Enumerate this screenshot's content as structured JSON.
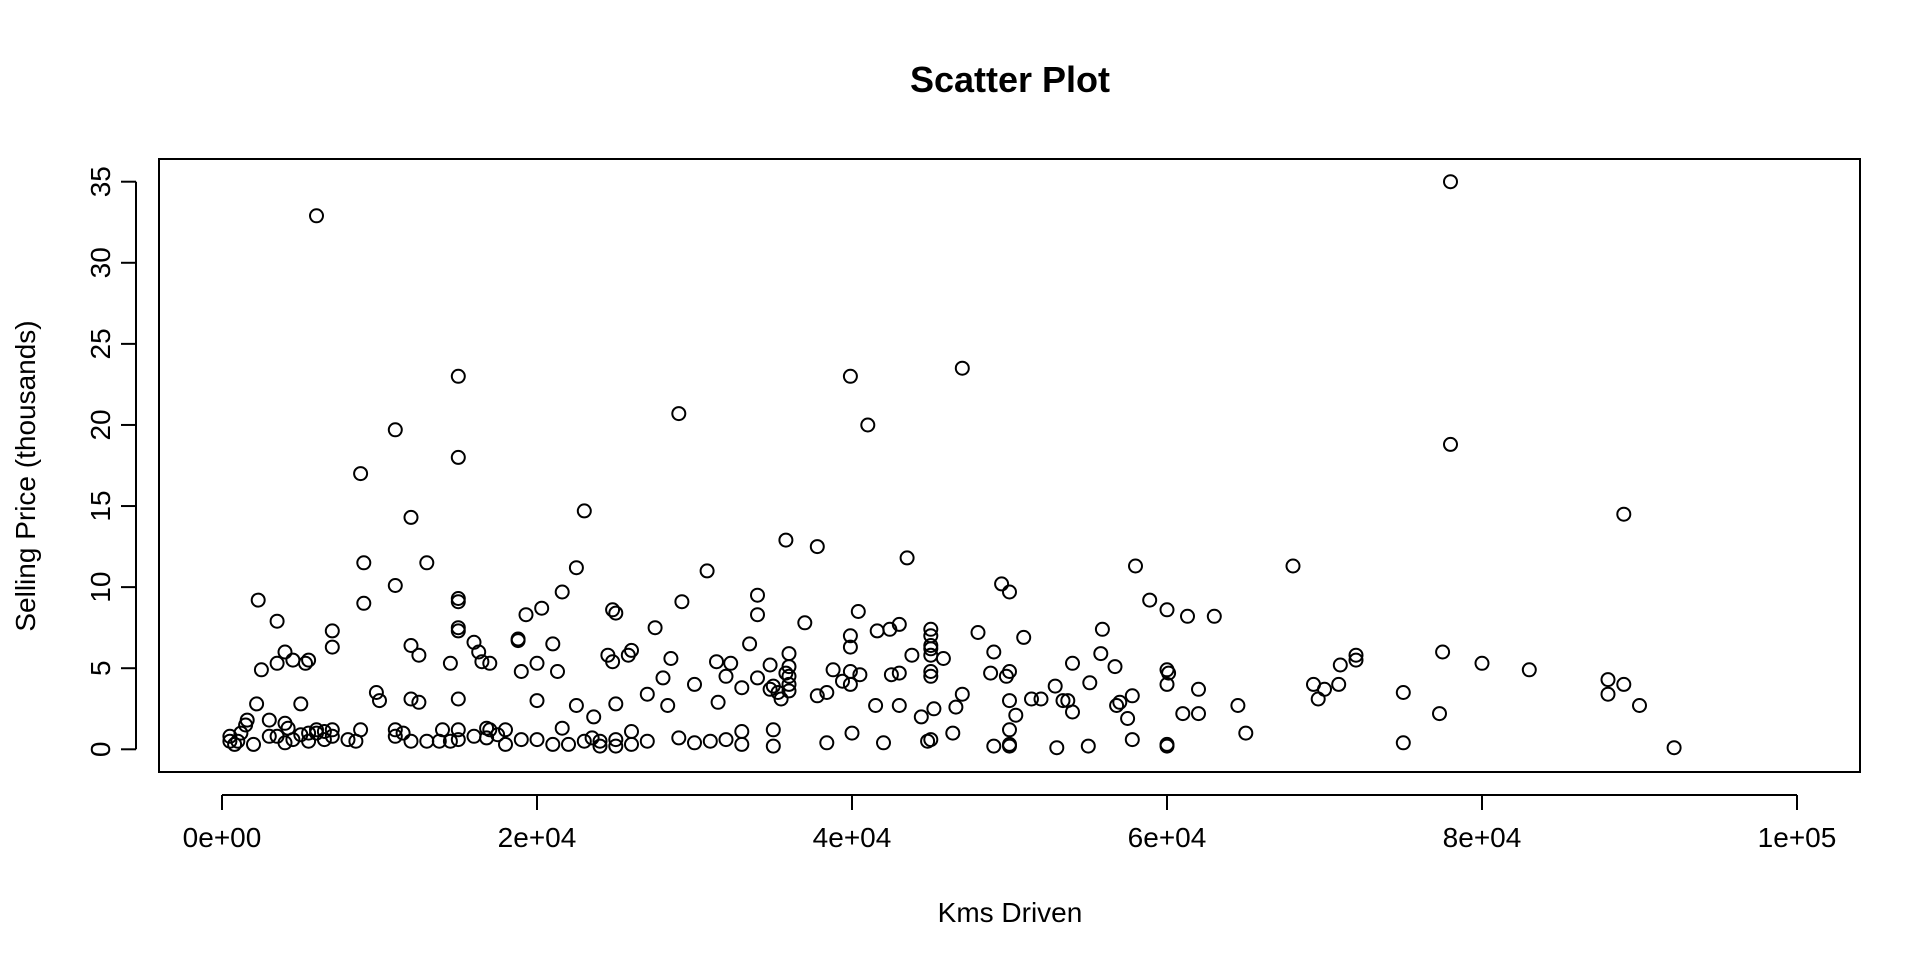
{
  "chart_data": {
    "type": "scatter",
    "title": "Scatter Plot",
    "xlabel": "Kms Driven",
    "ylabel": "Selling Price (thousands)",
    "xlim": [
      -4000,
      104000
    ],
    "ylim": [
      -1.4,
      36.4
    ],
    "xticks": [
      {
        "value": 0,
        "label": "0e+00"
      },
      {
        "value": 20000,
        "label": "2e+04"
      },
      {
        "value": 40000,
        "label": "4e+04"
      },
      {
        "value": 60000,
        "label": "6e+04"
      },
      {
        "value": 80000,
        "label": "8e+04"
      },
      {
        "value": 100000,
        "label": "1e+05"
      }
    ],
    "yticks": [
      {
        "value": 0,
        "label": "0"
      },
      {
        "value": 5,
        "label": "5"
      },
      {
        "value": 10,
        "label": "10"
      },
      {
        "value": 15,
        "label": "15"
      },
      {
        "value": 20,
        "label": "20"
      },
      {
        "value": 25,
        "label": "25"
      },
      {
        "value": 30,
        "label": "30"
      },
      {
        "value": 35,
        "label": "35"
      }
    ],
    "grid": false,
    "legend": "none",
    "point_style": "open-circle",
    "color": "#000000",
    "points": [
      [
        500,
        0.5
      ],
      [
        500,
        0.8
      ],
      [
        800,
        0.3
      ],
      [
        1000,
        0.5
      ],
      [
        1200,
        1.0
      ],
      [
        1500,
        1.5
      ],
      [
        1600,
        1.8
      ],
      [
        2000,
        0.3
      ],
      [
        2200,
        2.8
      ],
      [
        2300,
        9.2
      ],
      [
        2500,
        4.9
      ],
      [
        3000,
        0.8
      ],
      [
        3000,
        1.8
      ],
      [
        3500,
        5.3
      ],
      [
        3500,
        7.9
      ],
      [
        3500,
        0.8
      ],
      [
        4000,
        0.4
      ],
      [
        4000,
        1.6
      ],
      [
        4000,
        6.0
      ],
      [
        4200,
        1.3
      ],
      [
        4500,
        5.5
      ],
      [
        4500,
        0.6
      ],
      [
        5000,
        0.9
      ],
      [
        5000,
        2.8
      ],
      [
        5300,
        5.3
      ],
      [
        5500,
        5.5
      ],
      [
        5500,
        0.5
      ],
      [
        5500,
        1.0
      ],
      [
        6000,
        1.0
      ],
      [
        6000,
        1.2
      ],
      [
        6000,
        32.9
      ],
      [
        6500,
        0.6
      ],
      [
        6500,
        1.1
      ],
      [
        7000,
        7.3
      ],
      [
        7000,
        6.3
      ],
      [
        7000,
        0.8
      ],
      [
        7000,
        1.2
      ],
      [
        8000,
        0.6
      ],
      [
        8500,
        0.5
      ],
      [
        8800,
        17.0
      ],
      [
        8800,
        1.2
      ],
      [
        9000,
        11.5
      ],
      [
        9000,
        9.0
      ],
      [
        9800,
        3.5
      ],
      [
        10000,
        3.0
      ],
      [
        11000,
        1.2
      ],
      [
        11000,
        10.1
      ],
      [
        11000,
        19.7
      ],
      [
        11000,
        0.8
      ],
      [
        11500,
        1.0
      ],
      [
        12000,
        3.1
      ],
      [
        12000,
        6.4
      ],
      [
        12000,
        0.5
      ],
      [
        12000,
        14.3
      ],
      [
        12500,
        5.8
      ],
      [
        12500,
        2.9
      ],
      [
        13000,
        11.5
      ],
      [
        13000,
        0.5
      ],
      [
        13800,
        0.5
      ],
      [
        14000,
        1.2
      ],
      [
        14500,
        5.3
      ],
      [
        14500,
        0.5
      ],
      [
        15000,
        23.0
      ],
      [
        15000,
        18.0
      ],
      [
        15000,
        9.3
      ],
      [
        15000,
        9.1
      ],
      [
        15000,
        7.5
      ],
      [
        15000,
        7.3
      ],
      [
        15000,
        3.1
      ],
      [
        15000,
        0.6
      ],
      [
        15000,
        1.2
      ],
      [
        16000,
        6.6
      ],
      [
        16000,
        0.8
      ],
      [
        16300,
        6.0
      ],
      [
        16500,
        5.4
      ],
      [
        16800,
        1.3
      ],
      [
        16800,
        0.7
      ],
      [
        17000,
        5.3
      ],
      [
        17000,
        1.2
      ],
      [
        17500,
        0.9
      ],
      [
        18000,
        0.3
      ],
      [
        18000,
        1.2
      ],
      [
        18800,
        6.8
      ],
      [
        18800,
        6.7
      ],
      [
        19000,
        4.8
      ],
      [
        19000,
        0.6
      ],
      [
        19300,
        8.3
      ],
      [
        20000,
        5.3
      ],
      [
        20000,
        3.0
      ],
      [
        20000,
        0.6
      ],
      [
        20300,
        8.7
      ],
      [
        21000,
        0.3
      ],
      [
        21000,
        6.5
      ],
      [
        21300,
        4.8
      ],
      [
        21600,
        9.7
      ],
      [
        21600,
        1.3
      ],
      [
        22000,
        0.3
      ],
      [
        22500,
        11.2
      ],
      [
        22500,
        2.7
      ],
      [
        23000,
        14.7
      ],
      [
        23000,
        0.5
      ],
      [
        23500,
        0.7
      ],
      [
        23600,
        2.0
      ],
      [
        24000,
        0.2
      ],
      [
        24000,
        0.5
      ],
      [
        24500,
        5.8
      ],
      [
        24800,
        8.6
      ],
      [
        24800,
        5.4
      ],
      [
        25000,
        8.4
      ],
      [
        25000,
        2.8
      ],
      [
        25000,
        0.6
      ],
      [
        25000,
        0.2
      ],
      [
        25800,
        5.8
      ],
      [
        26000,
        6.1
      ],
      [
        26000,
        1.1
      ],
      [
        26000,
        0.3
      ],
      [
        27000,
        3.4
      ],
      [
        27000,
        0.5
      ],
      [
        27500,
        7.5
      ],
      [
        28000,
        4.4
      ],
      [
        28300,
        2.7
      ],
      [
        28500,
        5.6
      ],
      [
        29000,
        20.7
      ],
      [
        29000,
        0.7
      ],
      [
        29200,
        9.1
      ],
      [
        30000,
        4.0
      ],
      [
        30000,
        0.4
      ],
      [
        30800,
        11.0
      ],
      [
        31000,
        0.5
      ],
      [
        31400,
        5.4
      ],
      [
        31500,
        2.9
      ],
      [
        32000,
        4.5
      ],
      [
        32000,
        0.6
      ],
      [
        32300,
        5.3
      ],
      [
        33000,
        3.8
      ],
      [
        33000,
        0.3
      ],
      [
        33000,
        1.1
      ],
      [
        33500,
        6.5
      ],
      [
        34000,
        9.5
      ],
      [
        34000,
        8.3
      ],
      [
        34000,
        4.4
      ],
      [
        34800,
        5.2
      ],
      [
        34800,
        3.7
      ],
      [
        35000,
        3.9
      ],
      [
        35000,
        0.2
      ],
      [
        35000,
        1.2
      ],
      [
        35300,
        3.5
      ],
      [
        35500,
        3.1
      ],
      [
        35800,
        12.9
      ],
      [
        35800,
        4.7
      ],
      [
        36000,
        5.9
      ],
      [
        36000,
        5.1
      ],
      [
        36000,
        4.5
      ],
      [
        36000,
        4.0
      ],
      [
        36000,
        3.6
      ],
      [
        37000,
        7.8
      ],
      [
        37800,
        12.5
      ],
      [
        37800,
        3.3
      ],
      [
        38400,
        3.5
      ],
      [
        38400,
        0.4
      ],
      [
        38800,
        4.9
      ],
      [
        39400,
        4.2
      ],
      [
        39900,
        23.0
      ],
      [
        39900,
        7.0
      ],
      [
        39900,
        6.3
      ],
      [
        39900,
        4.8
      ],
      [
        39900,
        4.0
      ],
      [
        40000,
        1.0
      ],
      [
        40400,
        8.5
      ],
      [
        40500,
        4.6
      ],
      [
        41000,
        20.0
      ],
      [
        41500,
        2.7
      ],
      [
        41600,
        7.3
      ],
      [
        42000,
        0.4
      ],
      [
        42400,
        7.4
      ],
      [
        42500,
        4.6
      ],
      [
        43000,
        7.7
      ],
      [
        43000,
        4.7
      ],
      [
        43000,
        2.7
      ],
      [
        43500,
        11.8
      ],
      [
        43800,
        5.8
      ],
      [
        44400,
        2.0
      ],
      [
        44800,
        0.5
      ],
      [
        45000,
        7.4
      ],
      [
        45000,
        7.0
      ],
      [
        45000,
        6.4
      ],
      [
        45000,
        6.2
      ],
      [
        45000,
        5.8
      ],
      [
        45000,
        4.8
      ],
      [
        45000,
        4.5
      ],
      [
        45000,
        0.6
      ],
      [
        45200,
        2.5
      ],
      [
        45800,
        5.6
      ],
      [
        46400,
        1.0
      ],
      [
        46600,
        2.6
      ],
      [
        47000,
        23.5
      ],
      [
        47000,
        3.4
      ],
      [
        48000,
        7.2
      ],
      [
        48800,
        4.7
      ],
      [
        49000,
        6.0
      ],
      [
        49000,
        0.2
      ],
      [
        49500,
        10.2
      ],
      [
        49800,
        4.5
      ],
      [
        50000,
        9.7
      ],
      [
        50000,
        4.8
      ],
      [
        50000,
        3.0
      ],
      [
        50000,
        1.2
      ],
      [
        50000,
        0.2
      ],
      [
        50000,
        0.3
      ],
      [
        50400,
        2.1
      ],
      [
        50900,
        6.9
      ],
      [
        51400,
        3.1
      ],
      [
        52000,
        3.1
      ],
      [
        52900,
        3.9
      ],
      [
        53000,
        0.1
      ],
      [
        53400,
        3.0
      ],
      [
        53700,
        3.0
      ],
      [
        54000,
        2.3
      ],
      [
        54000,
        5.3
      ],
      [
        55000,
        0.2
      ],
      [
        55100,
        4.1
      ],
      [
        55800,
        5.9
      ],
      [
        55900,
        7.4
      ],
      [
        56700,
        5.1
      ],
      [
        56800,
        2.7
      ],
      [
        57000,
        2.9
      ],
      [
        57500,
        1.9
      ],
      [
        57800,
        3.3
      ],
      [
        57800,
        0.6
      ],
      [
        58000,
        11.3
      ],
      [
        58900,
        9.2
      ],
      [
        60000,
        0.2
      ],
      [
        60000,
        0.3
      ],
      [
        60000,
        8.6
      ],
      [
        60000,
        4.9
      ],
      [
        60000,
        4.0
      ],
      [
        60100,
        4.7
      ],
      [
        61000,
        2.2
      ],
      [
        61300,
        8.2
      ],
      [
        62000,
        2.2
      ],
      [
        62000,
        3.7
      ],
      [
        63000,
        8.2
      ],
      [
        64500,
        2.7
      ],
      [
        65000,
        1.0
      ],
      [
        68000,
        11.3
      ],
      [
        69300,
        4.0
      ],
      [
        69600,
        3.1
      ],
      [
        70000,
        3.7
      ],
      [
        70900,
        4.0
      ],
      [
        71000,
        5.2
      ],
      [
        72000,
        5.8
      ],
      [
        72000,
        5.5
      ],
      [
        75000,
        3.5
      ],
      [
        75000,
        0.4
      ],
      [
        77300,
        2.2
      ],
      [
        77500,
        6.0
      ],
      [
        78000,
        35.0
      ],
      [
        78000,
        18.8
      ],
      [
        80000,
        5.3
      ],
      [
        83000,
        4.9
      ],
      [
        88000,
        4.3
      ],
      [
        88000,
        3.4
      ],
      [
        89000,
        14.5
      ],
      [
        89000,
        4.0
      ],
      [
        90000,
        2.7
      ],
      [
        92200,
        0.1
      ]
    ]
  }
}
